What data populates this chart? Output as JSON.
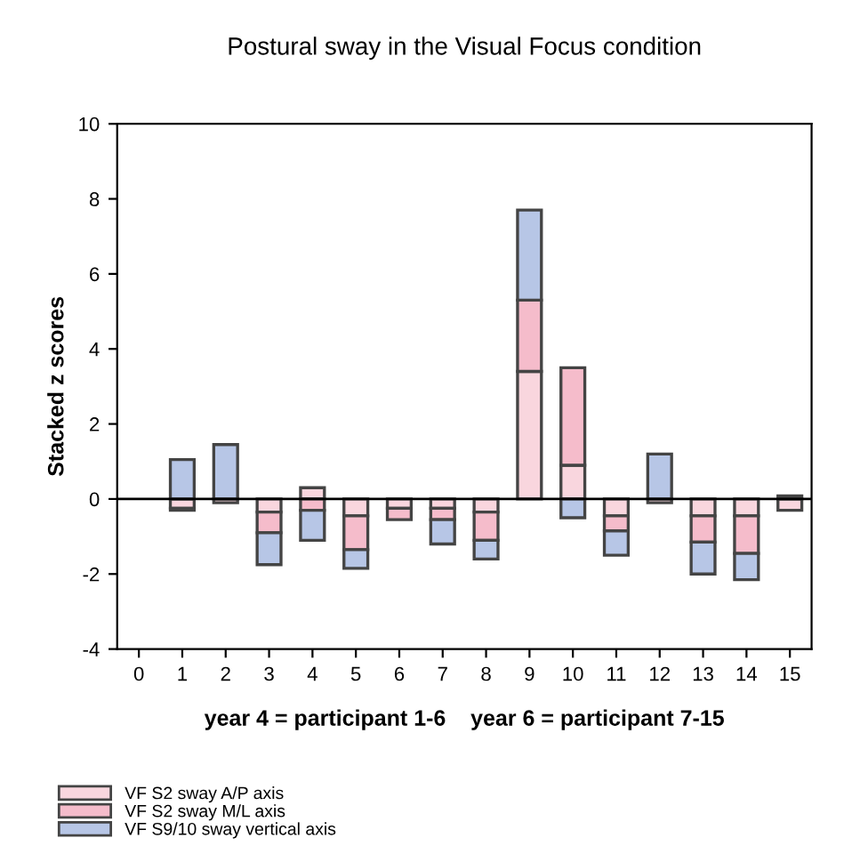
{
  "chart_data": {
    "type": "bar",
    "title": "Postural sway in the Visual Focus condition",
    "xlabel": "year 4 = participant 1-6    year 6 = participant 7-15",
    "ylabel": "Stacked z scores",
    "categories": [
      "0",
      "1",
      "2",
      "3",
      "4",
      "5",
      "6",
      "7",
      "8",
      "9",
      "10",
      "11",
      "12",
      "13",
      "14",
      "15"
    ],
    "stacked": true,
    "series": [
      {
        "name": "VF S2 sway A/P axis",
        "color": "#f9d6de",
        "values": [
          null,
          -0.25,
          -0.1,
          -0.35,
          0.3,
          -0.45,
          -0.25,
          -0.25,
          -0.35,
          3.4,
          0.9,
          -0.45,
          -0.1,
          -0.45,
          -0.45,
          -0.3
        ]
      },
      {
        "name": "VF S2 sway M/L axis",
        "color": "#f5bccb",
        "values": [
          null,
          -0.05,
          null,
          -0.55,
          -0.3,
          -0.9,
          -0.3,
          -0.3,
          -0.75,
          1.9,
          2.6,
          -0.4,
          null,
          -0.7,
          -1.0,
          null
        ]
      },
      {
        "name": "VF S9/10 sway vertical axis",
        "color": "#b7c6e6",
        "values": [
          null,
          1.05,
          1.45,
          -0.85,
          -0.8,
          -0.5,
          null,
          -0.65,
          -0.5,
          2.4,
          -0.5,
          -0.65,
          1.2,
          -0.85,
          -0.7,
          0.08
        ]
      }
    ],
    "ylim": [
      -4,
      10
    ],
    "yticks": [
      -4,
      -2,
      0,
      2,
      4,
      6,
      8,
      10
    ],
    "ref_lines": [
      {
        "axis": "y",
        "value": 0,
        "color": "#000000"
      }
    ],
    "grid": false,
    "legend": "bottom"
  }
}
